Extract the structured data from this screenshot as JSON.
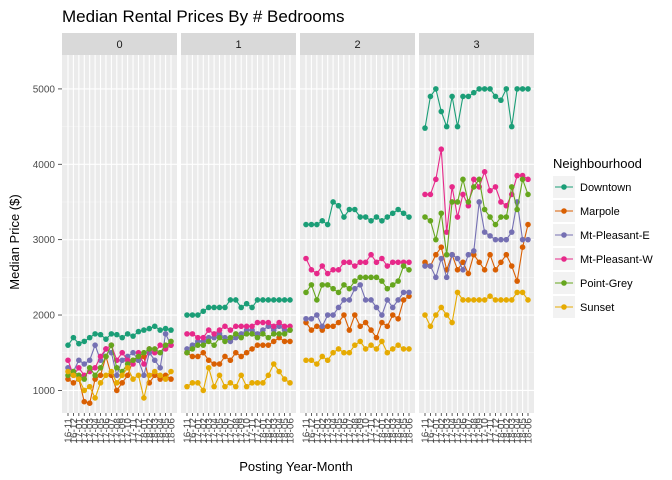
{
  "chart_data": {
    "type": "line",
    "title": "Median Rental Prices By # Bedrooms",
    "xlabel": "Posting Year-Month",
    "ylabel": "Median Price ($)",
    "ylim": [
      700,
      5450
    ],
    "y_ticks": [
      1000,
      2000,
      3000,
      4000,
      5000
    ],
    "grid": true,
    "facets": [
      "0",
      "1",
      "2",
      "3"
    ],
    "x": [
      "16-11",
      "16-12",
      "17-01",
      "17-02",
      "17-03",
      "17-04",
      "17-05",
      "17-06",
      "17-07",
      "17-08",
      "17-09",
      "17-10",
      "17-11",
      "17-12",
      "18-01",
      "18-02",
      "18-03",
      "18-04",
      "18-05",
      "18-06"
    ],
    "x_tick_labels": [
      "16-11",
      "16-12",
      "17-01",
      "17-02",
      "17-03",
      "17-04",
      "17-05",
      "17-06",
      "17-07",
      "17-08",
      "17-09",
      "17-10",
      "17-11",
      "17-12",
      "18-01",
      "18-02",
      "18-03",
      "18-04",
      "18-05",
      "18-06"
    ],
    "legend": {
      "title": "Neighbourhood",
      "placement": "right",
      "entries": [
        "Downtown",
        "Marpole",
        "Mt-Pleasant-E",
        "Mt-Pleasant-W",
        "Point-Grey",
        "Sunset"
      ]
    },
    "colors": {
      "Downtown": "#1b9e77",
      "Marpole": "#d95f02",
      "Mt-Pleasant-E": "#7570b3",
      "Mt-Pleasant-W": "#e7298a",
      "Point-Grey": "#66a61e",
      "Sunset": "#e6ab02"
    },
    "panels": [
      {
        "facet": "0",
        "series": [
          {
            "name": "Downtown",
            "values": [
              1600,
              1700,
              1620,
              1650,
              1700,
              1750,
              1740,
              1680,
              1750,
              1740,
              1700,
              1750,
              1720,
              1780,
              1800,
              1820,
              1850,
              1800,
              1820,
              1800
            ]
          },
          {
            "name": "Marpole",
            "values": [
              1150,
              1100,
              1150,
              850,
              830,
              1150,
              1200,
              1450,
              1200,
              1000,
              1100,
              1200,
              1400,
              1400,
              1450,
              1100,
              1200,
              1150,
              1200,
              1150
            ]
          },
          {
            "name": "Mt-Pleasant-E",
            "values": [
              1300,
              1250,
              1400,
              1350,
              1400,
              1600,
              1400,
              1550,
              1500,
              1200,
              1400,
              1450,
              1500,
              1400,
              1200,
              1500,
              1400,
              1300,
              1750,
              1600
            ]
          },
          {
            "name": "Mt-Pleasant-W",
            "values": [
              1400,
              1200,
              1300,
              1200,
              1250,
              1300,
              1450,
              1550,
              1600,
              1400,
              1500,
              1400,
              1350,
              1500,
              1350,
              1550,
              1500,
              1600,
              1550,
              1600
            ]
          },
          {
            "name": "Point-Grey",
            "values": [
              1200,
              1250,
              1200,
              1150,
              1300,
              1200,
              1300,
              1450,
              1600,
              1300,
              1250,
              1350,
              1400,
              1450,
              1500,
              1550,
              1550,
              1500,
              1600,
              1650
            ]
          },
          {
            "name": "Sunset",
            "values": [
              1250,
              1200,
              1150,
              1000,
              1050,
              900,
              1100,
              1200,
              1250,
              1100,
              1200,
              1300,
              1150,
              1200,
              900,
              1200,
              1250,
              1200,
              1150,
              1250
            ]
          }
        ]
      },
      {
        "facet": "1",
        "series": [
          {
            "name": "Downtown",
            "values": [
              2000,
              2000,
              2000,
              2050,
              2100,
              2100,
              2100,
              2100,
              2200,
              2200,
              2100,
              2150,
              2100,
              2200,
              2200,
              2200,
              2200,
              2200,
              2200,
              2200
            ]
          },
          {
            "name": "Marpole",
            "values": [
              1500,
              1450,
              1450,
              1500,
              1400,
              1350,
              1350,
              1450,
              1400,
              1500,
              1450,
              1500,
              1550,
              1600,
              1600,
              1600,
              1650,
              1700,
              1650,
              1650
            ]
          },
          {
            "name": "Mt-Pleasant-E",
            "values": [
              1550,
              1600,
              1650,
              1650,
              1700,
              1700,
              1750,
              1700,
              1650,
              1700,
              1750,
              1800,
              1800,
              1750,
              1800,
              1850,
              1800,
              1850,
              1800,
              1800
            ]
          },
          {
            "name": "Mt-Pleasant-W",
            "values": [
              1750,
              1750,
              1700,
              1700,
              1800,
              1750,
              1800,
              1850,
              1800,
              1850,
              1850,
              1850,
              1850,
              1900,
              1900,
              1900,
              1850,
              1900,
              1850,
              1850
            ]
          },
          {
            "name": "Point-Grey",
            "values": [
              1500,
              1550,
              1600,
              1600,
              1650,
              1600,
              1700,
              1650,
              1700,
              1750,
              1700,
              1750,
              1750,
              1700,
              1750,
              1700,
              1750,
              1750,
              1750,
              1800
            ]
          },
          {
            "name": "Sunset",
            "values": [
              1050,
              1100,
              1100,
              1000,
              1300,
              1050,
              1200,
              1050,
              1100,
              1050,
              1200,
              1050,
              1100,
              1100,
              1100,
              1200,
              1350,
              1250,
              1150,
              1100
            ]
          }
        ]
      },
      {
        "facet": "2",
        "series": [
          {
            "name": "Downtown",
            "values": [
              3200,
              3200,
              3200,
              3250,
              3200,
              3500,
              3450,
              3300,
              3400,
              3400,
              3300,
              3300,
              3250,
              3300,
              3250,
              3300,
              3350,
              3400,
              3350,
              3300
            ]
          },
          {
            "name": "Marpole",
            "values": [
              1900,
              1800,
              1850,
              1800,
              1850,
              1850,
              1900,
              2000,
              1800,
              2000,
              1850,
              1900,
              1800,
              1700,
              1900,
              1850,
              2000,
              1950,
              2200,
              2250
            ]
          },
          {
            "name": "Mt-Pleasant-E",
            "values": [
              1950,
              1950,
              2000,
              1850,
              2000,
              2000,
              2100,
              2200,
              2200,
              2350,
              2400,
              2200,
              2200,
              2100,
              2000,
              2200,
              2100,
              2200,
              2300,
              2300
            ]
          },
          {
            "name": "Mt-Pleasant-W",
            "values": [
              2750,
              2600,
              2550,
              2650,
              2550,
              2600,
              2600,
              2700,
              2700,
              2650,
              2700,
              2700,
              2800,
              2700,
              2750,
              2650,
              2700,
              2700,
              2700,
              2700
            ]
          },
          {
            "name": "Point-Grey",
            "values": [
              2300,
              2400,
              2200,
              2400,
              2400,
              2350,
              2300,
              2400,
              2350,
              2450,
              2500,
              2500,
              2500,
              2500,
              2450,
              2350,
              2400,
              2450,
              2650,
              2600
            ]
          },
          {
            "name": "Sunset",
            "values": [
              1400,
              1400,
              1350,
              1450,
              1400,
              1500,
              1550,
              1500,
              1500,
              1600,
              1650,
              1550,
              1600,
              1550,
              1650,
              1500,
              1550,
              1600,
              1550,
              1550
            ]
          }
        ]
      },
      {
        "facet": "3",
        "series": [
          {
            "name": "Downtown",
            "values": [
              4480,
              4900,
              5000,
              4700,
              4500,
              4900,
              4500,
              4900,
              4900,
              4950,
              5000,
              5000,
              5000,
              4900,
              4850,
              5000,
              4500,
              5000,
              5000,
              5000
            ]
          },
          {
            "name": "Marpole",
            "values": [
              2700,
              2650,
              2800,
              2900,
              2600,
              2800,
              2600,
              2700,
              2550,
              2800,
              2700,
              2600,
              2800,
              2600,
              2700,
              2800,
              2650,
              2450,
              2900,
              3200
            ]
          },
          {
            "name": "Mt-Pleasant-E",
            "values": [
              2650,
              2650,
              2500,
              2750,
              2500,
              2800,
              2750,
              2600,
              2800,
              2850,
              3500,
              3100,
              3050,
              3000,
              3000,
              3000,
              3100,
              3500,
              3000,
              3000
            ]
          },
          {
            "name": "Mt-Pleasant-W",
            "values": [
              3600,
              3600,
              3800,
              4200,
              3100,
              3700,
              3300,
              3600,
              3450,
              3800,
              3700,
              3900,
              3650,
              3700,
              3500,
              3450,
              3600,
              3850,
              3850,
              3800
            ]
          },
          {
            "name": "Point-Grey",
            "values": [
              3300,
              3250,
              3000,
              3350,
              2800,
              3500,
              3500,
              3800,
              3500,
              3700,
              3800,
              3400,
              3300,
              3200,
              3300,
              3300,
              3700,
              3400,
              3800,
              3600
            ]
          },
          {
            "name": "Sunset",
            "values": [
              2000,
              1850,
              2000,
              2100,
              2000,
              1900,
              2300,
              2200,
              2200,
              2200,
              2200,
              2200,
              2250,
              2200,
              2200,
              2200,
              2200,
              2300,
              2300,
              2200
            ]
          }
        ]
      }
    ]
  }
}
